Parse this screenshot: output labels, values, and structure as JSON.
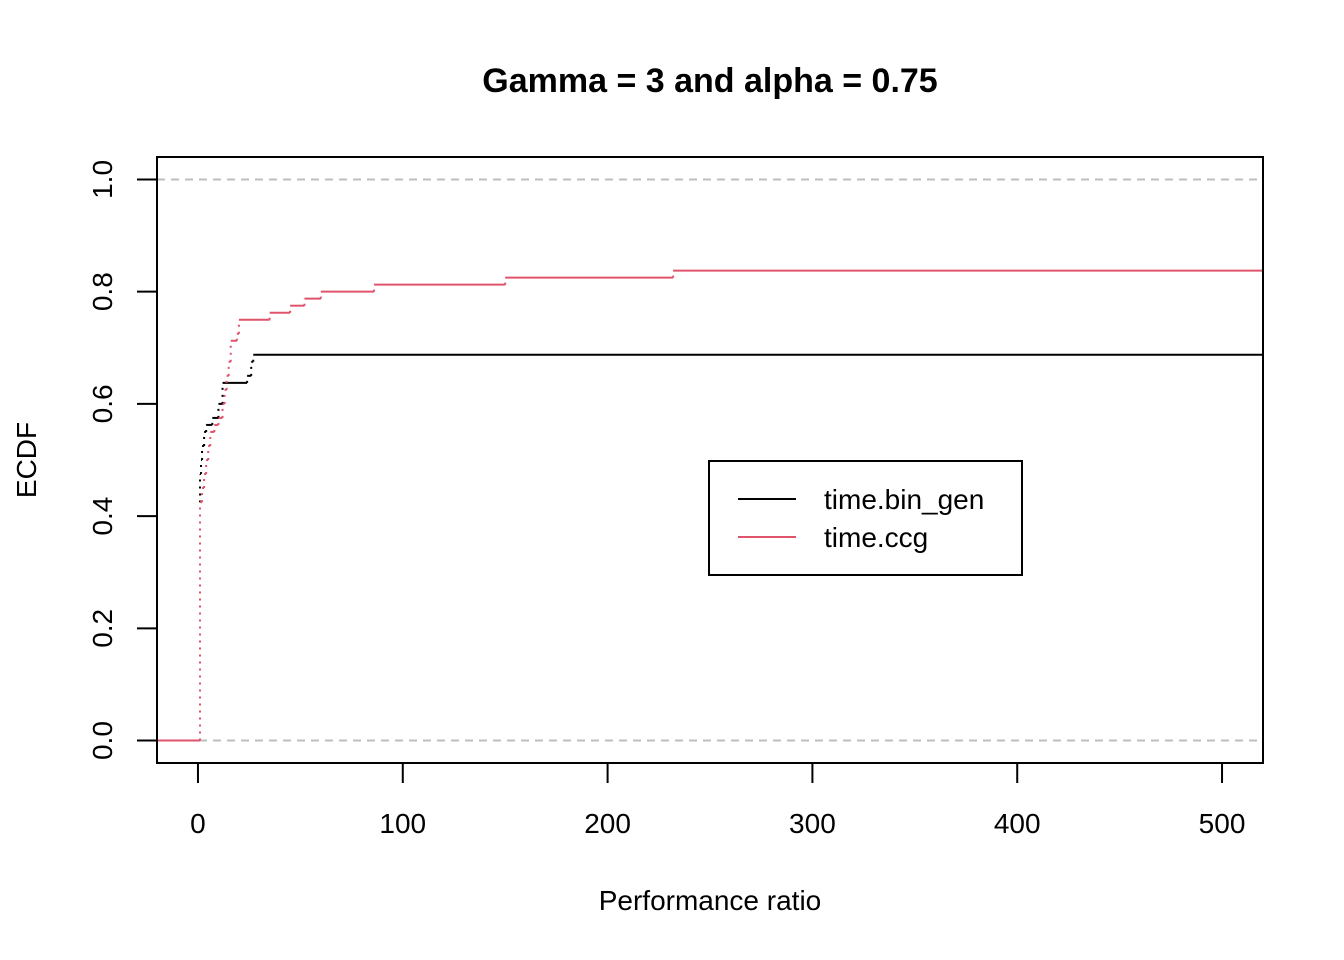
{
  "chart_data": {
    "type": "line",
    "title": "Gamma = 3 and alpha = 0.75",
    "xlabel": "Performance ratio",
    "ylabel": "ECDF",
    "xlim": [
      -20,
      520
    ],
    "ylim": [
      -0.04,
      1.04
    ],
    "x_ticks": [
      0,
      100,
      200,
      300,
      400,
      500
    ],
    "x_tick_labels": [
      "0",
      "100",
      "200",
      "300",
      "400",
      "500"
    ],
    "y_ticks": [
      0.0,
      0.2,
      0.4,
      0.6,
      0.8,
      1.0
    ],
    "y_tick_labels": [
      "0.0",
      "0.2",
      "0.4",
      "0.6",
      "0.8",
      "1.0"
    ],
    "reference_lines": [
      0,
      1
    ],
    "reference_color": "#BEBEBE",
    "grid": false,
    "legend_position": "center-right",
    "series": [
      {
        "name": "time.bin_gen",
        "color": "#000000",
        "steps": [
          [
            1,
            0.475
          ],
          [
            1.5,
            0.5
          ],
          [
            2,
            0.525
          ],
          [
            3,
            0.55
          ],
          [
            4,
            0.5625
          ],
          [
            7,
            0.575
          ],
          [
            10,
            0.6
          ],
          [
            12,
            0.6375
          ],
          [
            24,
            0.65
          ],
          [
            26,
            0.675
          ],
          [
            27,
            0.6875
          ]
        ]
      },
      {
        "name": "time.ccg",
        "color": "#DF536B",
        "steps": [
          [
            1,
            0.425
          ],
          [
            2,
            0.45
          ],
          [
            3,
            0.475
          ],
          [
            4,
            0.5
          ],
          [
            5,
            0.525
          ],
          [
            6,
            0.55
          ],
          [
            8,
            0.5625
          ],
          [
            10,
            0.575
          ],
          [
            12,
            0.6
          ],
          [
            13,
            0.625
          ],
          [
            14,
            0.65
          ],
          [
            15,
            0.675
          ],
          [
            16,
            0.7125
          ],
          [
            19,
            0.725
          ],
          [
            20,
            0.75
          ],
          [
            35,
            0.7625
          ],
          [
            45,
            0.775
          ],
          [
            52,
            0.7875
          ],
          [
            60,
            0.8
          ],
          [
            86,
            0.8125
          ],
          [
            150,
            0.825
          ],
          [
            232,
            0.8375
          ]
        ]
      }
    ]
  }
}
